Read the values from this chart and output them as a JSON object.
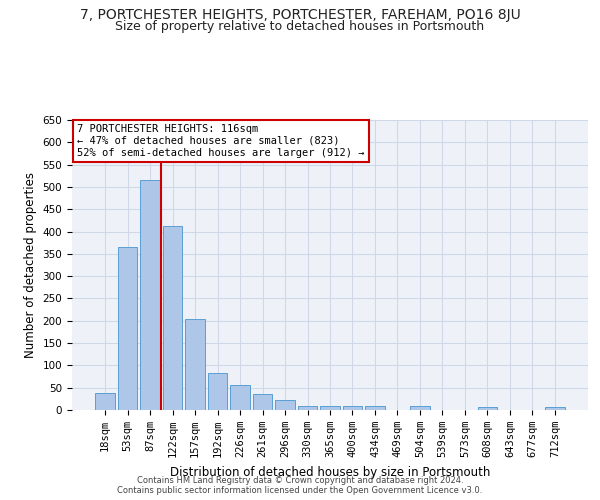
{
  "title_line1": "7, PORTCHESTER HEIGHTS, PORTCHESTER, FAREHAM, PO16 8JU",
  "title_line2": "Size of property relative to detached houses in Portsmouth",
  "xlabel": "Distribution of detached houses by size in Portsmouth",
  "ylabel": "Number of detached properties",
  "footer_line1": "Contains HM Land Registry data © Crown copyright and database right 2024.",
  "footer_line2": "Contains public sector information licensed under the Open Government Licence v3.0.",
  "annotation_line1": "7 PORTCHESTER HEIGHTS: 116sqm",
  "annotation_line2": "← 47% of detached houses are smaller (823)",
  "annotation_line3": "52% of semi-detached houses are larger (912) →",
  "categories": [
    "18sqm",
    "53sqm",
    "87sqm",
    "122sqm",
    "157sqm",
    "192sqm",
    "226sqm",
    "261sqm",
    "296sqm",
    "330sqm",
    "365sqm",
    "400sqm",
    "434sqm",
    "469sqm",
    "504sqm",
    "539sqm",
    "573sqm",
    "608sqm",
    "643sqm",
    "677sqm",
    "712sqm"
  ],
  "values": [
    38,
    365,
    516,
    413,
    204,
    83,
    55,
    35,
    22,
    10,
    8,
    8,
    8,
    1,
    8,
    1,
    1,
    6,
    1,
    1,
    6
  ],
  "bar_color": "#aec6e8",
  "bar_edge_color": "#5a9fd4",
  "vline_color": "#cc0000",
  "annotation_box_color": "#cc0000",
  "annotation_box_fill": "#ffffff",
  "grid_color": "#d0d8e8",
  "bg_color": "#eef2f8",
  "ylim": [
    0,
    650
  ],
  "yticks": [
    0,
    50,
    100,
    150,
    200,
    250,
    300,
    350,
    400,
    450,
    500,
    550,
    600,
    650
  ],
  "title_fontsize": 10,
  "subtitle_fontsize": 9,
  "xlabel_fontsize": 8.5,
  "ylabel_fontsize": 8.5,
  "tick_fontsize": 7.5,
  "annotation_fontsize": 7.5,
  "footer_fontsize": 6
}
